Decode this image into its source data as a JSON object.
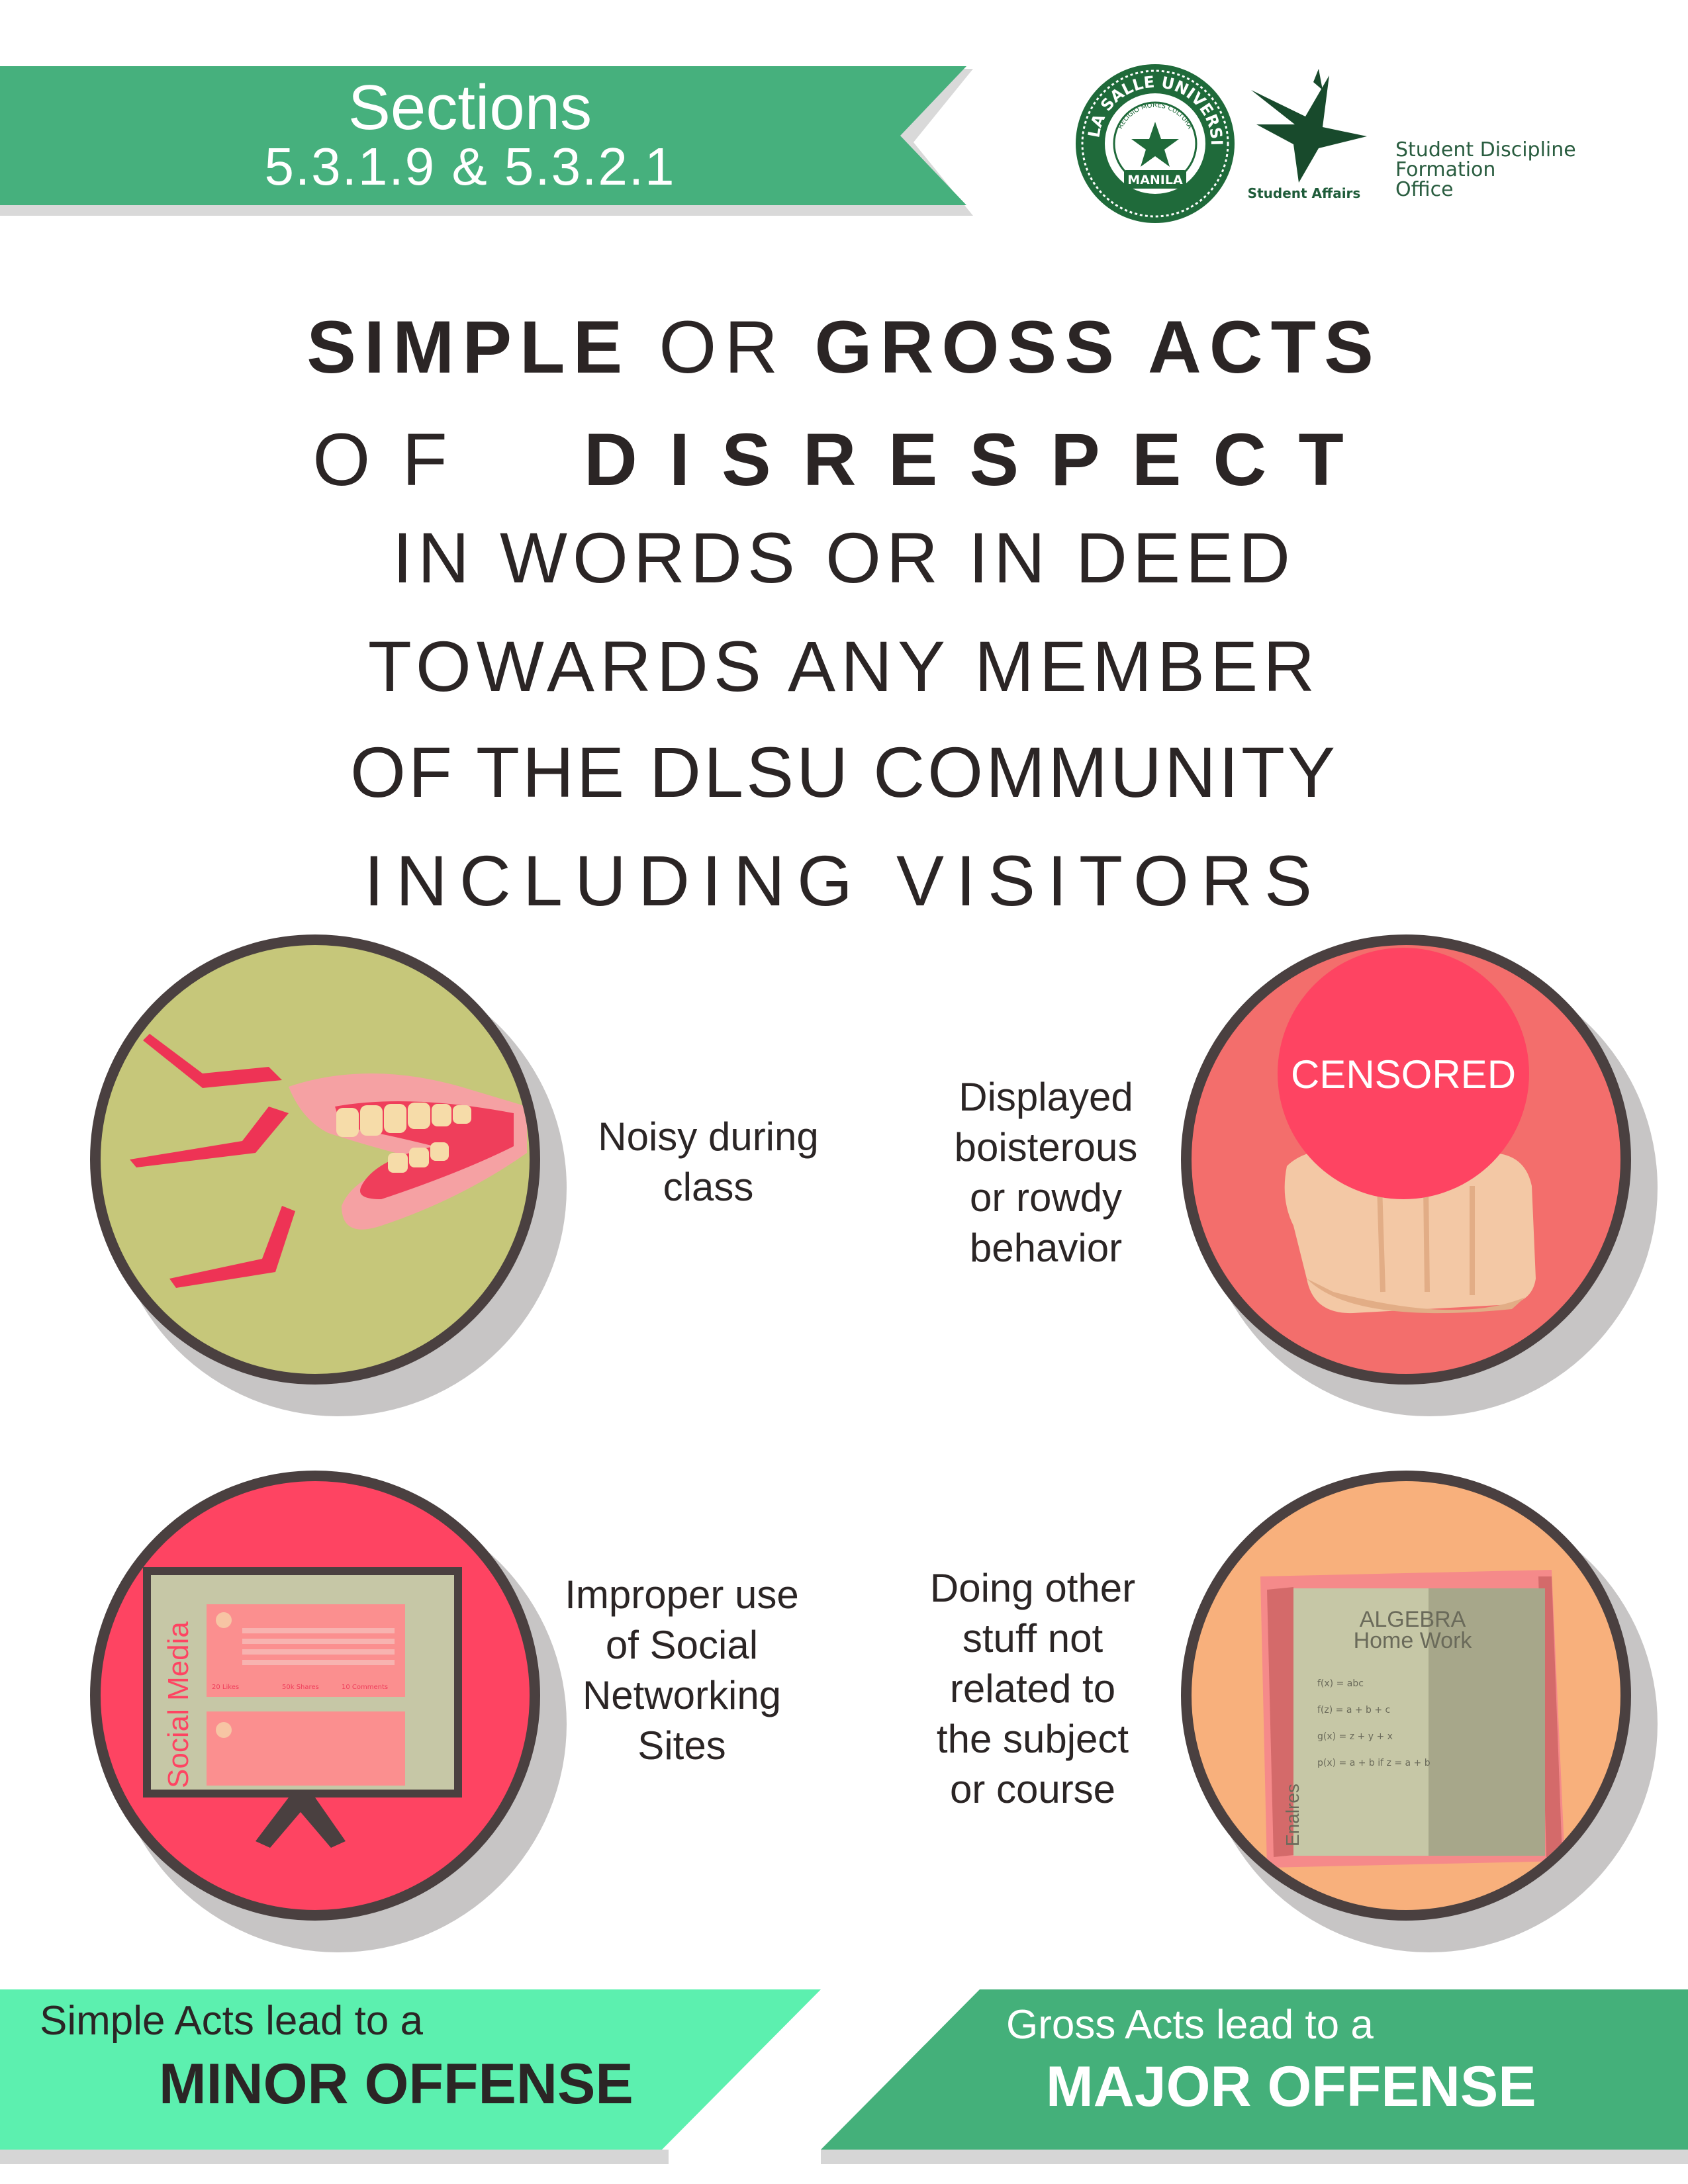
{
  "header": {
    "title": "Sections",
    "section_numbers": "5.3.1.9 & 5.3.2.1"
  },
  "logos": {
    "university_seal": {
      "lettering_top": "DE LA SALLE UNIVERSITY",
      "lettering_motto": "RELIGIO MORES CULTURA",
      "lettering_bottom": "MANILA"
    },
    "student_affairs_label": "Student Affairs",
    "office_lines": [
      "Student Discipline",
      "Formation",
      "Office"
    ]
  },
  "headline": {
    "line1_bold_a": "SIMPLE",
    "line1_light": "OR",
    "line1_bold_b": "GROSS ACTS",
    "line2_light": "OF",
    "line2_bold": "DISRESPECT",
    "line3": "IN WORDS OR IN DEED",
    "line4": "TOWARDS ANY MEMBER",
    "line5": "OF THE DLSU COMMUNITY",
    "line6": "INCLUDING VISITORS"
  },
  "items": [
    {
      "caption_lines": [
        "Noisy during",
        "class"
      ]
    },
    {
      "caption_lines": [
        "Displayed",
        "boisterous",
        "or rowdy",
        "behavior"
      ],
      "badge": "CENSORED"
    },
    {
      "caption_lines": [
        "Improper use",
        "of Social",
        "Networking",
        "Sites"
      ],
      "screen_label": "Social Media",
      "post_stats": [
        "20 Likes",
        "50k Shares",
        "10 Comments"
      ]
    },
    {
      "caption_lines": [
        "Doing other",
        "stuff not",
        "related to",
        "the subject",
        "or course"
      ],
      "book_title": "ALGEBRA",
      "book_subtitle": "Home Work",
      "book_spine": "Enalres",
      "formulas": [
        "f(x) = abc",
        "f(z) = a + b + c",
        "g(x) = z + y + x",
        "p(x) = a + b if z = a + b"
      ]
    }
  ],
  "footer": {
    "left_line1": "Simple Acts lead to a",
    "left_line2": "MINOR OFFENSE",
    "right_line1": "Gross Acts lead to a",
    "right_line2": "MAJOR OFFENSE"
  },
  "colors": {
    "header_green": "#46b07d",
    "minor_green": "#5cf0af",
    "major_green": "#44b07a",
    "circle_olive": "#c6c77a",
    "circle_coral": "#f36e6c",
    "circle_red": "#fe4462",
    "circle_peach": "#f8b07c"
  }
}
